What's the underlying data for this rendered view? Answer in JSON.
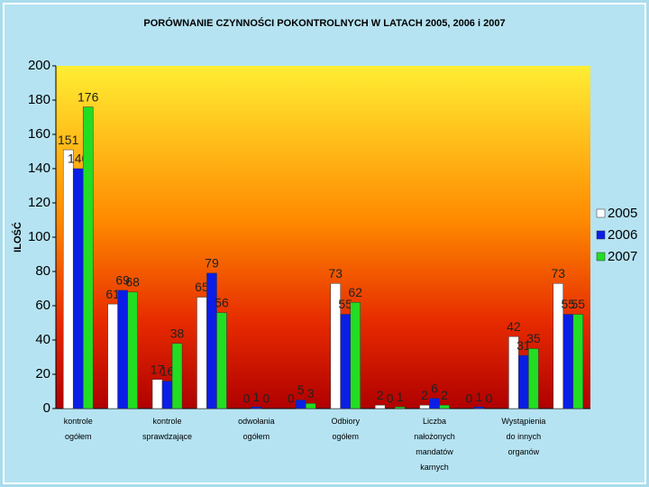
{
  "chart_data": {
    "type": "bar",
    "title": "PORÓWNANIE CZYNNOŚCI POKONTROLNYCH W LATACH 2005, 2006 i 2007",
    "y_label": "ILOŚĆ",
    "categories": [
      "kontrole ogółem",
      null,
      "kontrole sprawdzające",
      null,
      "odwołania ogółem",
      null,
      "Odbiory ogółem",
      null,
      "Liczba nałożonych mandatów karnych",
      null,
      "Wystąpienia do innych organów",
      null
    ],
    "series": [
      {
        "name": "2005",
        "color": "#ffffff",
        "values": [
          151,
          61,
          17,
          65,
          0,
          0,
          73,
          2,
          2,
          0,
          42,
          73
        ]
      },
      {
        "name": "2006",
        "color": "#0a1ee6",
        "values": [
          140,
          69,
          16,
          79,
          1,
          5,
          55,
          0,
          6,
          1,
          31,
          55
        ]
      },
      {
        "name": "2007",
        "color": "#22dd22",
        "values": [
          176,
          68,
          38,
          56,
          0,
          3,
          62,
          1,
          2,
          0,
          35,
          55
        ]
      }
    ],
    "ylim": [
      0,
      200
    ],
    "yticks": [
      0,
      20,
      40,
      60,
      80,
      100,
      120,
      140,
      160,
      180,
      200
    ],
    "legend": "right"
  }
}
